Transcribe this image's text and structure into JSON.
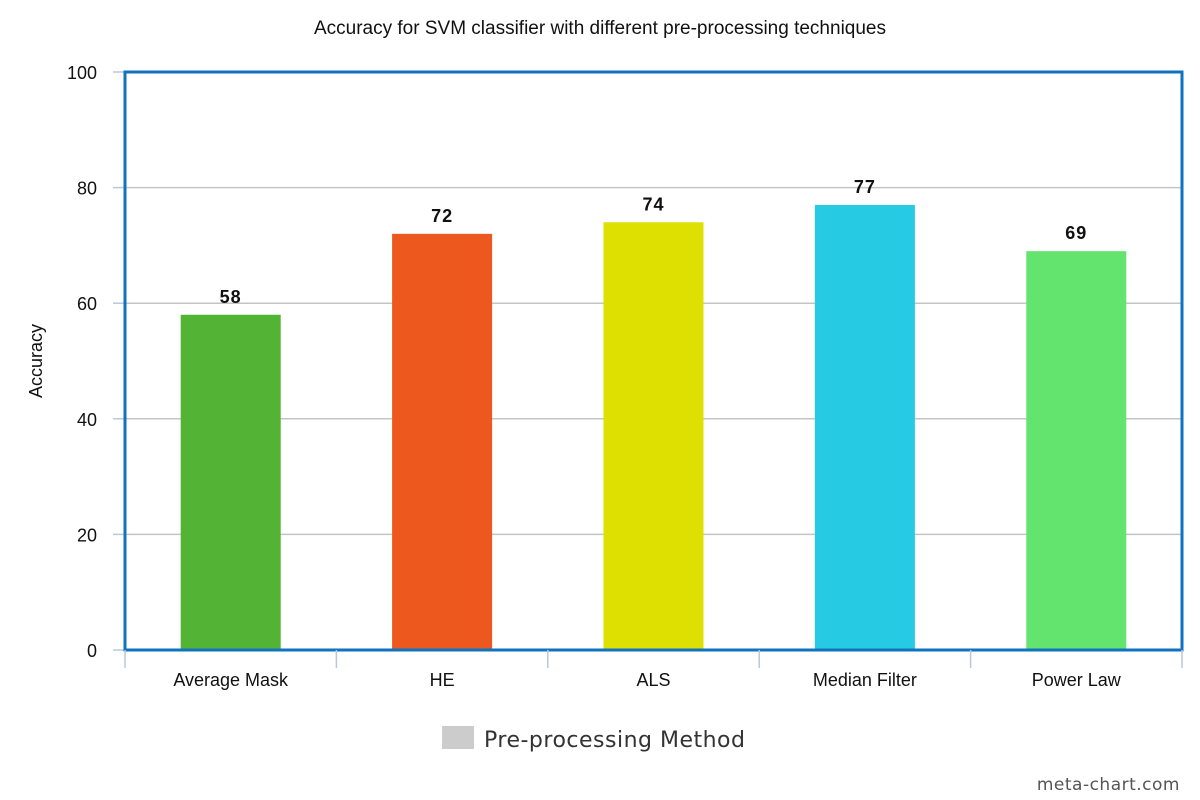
{
  "chart_data": {
    "type": "bar",
    "title": "Accuracy for SVM classifier with different pre-processing techniques",
    "xlabel": "",
    "ylabel": "Accuracy",
    "categories": [
      "Average Mask",
      "HE",
      "ALS",
      "Median Filter",
      "Power Law"
    ],
    "series": [
      {
        "name": "Pre-processing Method",
        "values": [
          58,
          72,
          74,
          77,
          69
        ],
        "colors": [
          "#52b334",
          "#ec581e",
          "#dde000",
          "#26cbe3",
          "#63e46f"
        ]
      }
    ],
    "data_labels": [
      "58",
      "72",
      "74",
      "77",
      "69"
    ],
    "ylim": [
      0,
      100
    ],
    "yticks": [
      0,
      20,
      40,
      60,
      80,
      100
    ],
    "grid": true,
    "legend": {
      "position": "bottom-center",
      "swatch_color": "#cccccc"
    },
    "colors": {
      "frame": "#0f73c0",
      "gridline": "#c4c4c4",
      "axis_tick": "#b8c8dc"
    }
  },
  "credit": "meta-chart.com"
}
